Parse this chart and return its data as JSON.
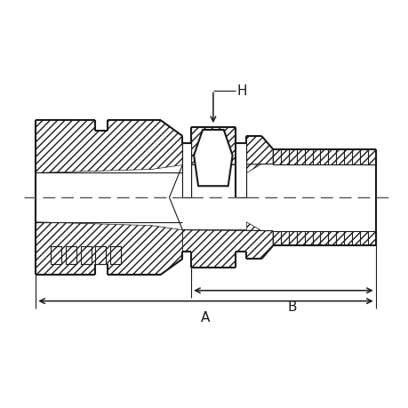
{
  "bg_color": "#ffffff",
  "lc": "#1a1a1a",
  "dash_color": "#555555",
  "figsize": [
    4.6,
    4.6
  ],
  "dpi": 100,
  "label_A": "A",
  "label_B": "B",
  "label_H": "H",
  "lw_main": 1.5,
  "lw_thin": 0.8
}
